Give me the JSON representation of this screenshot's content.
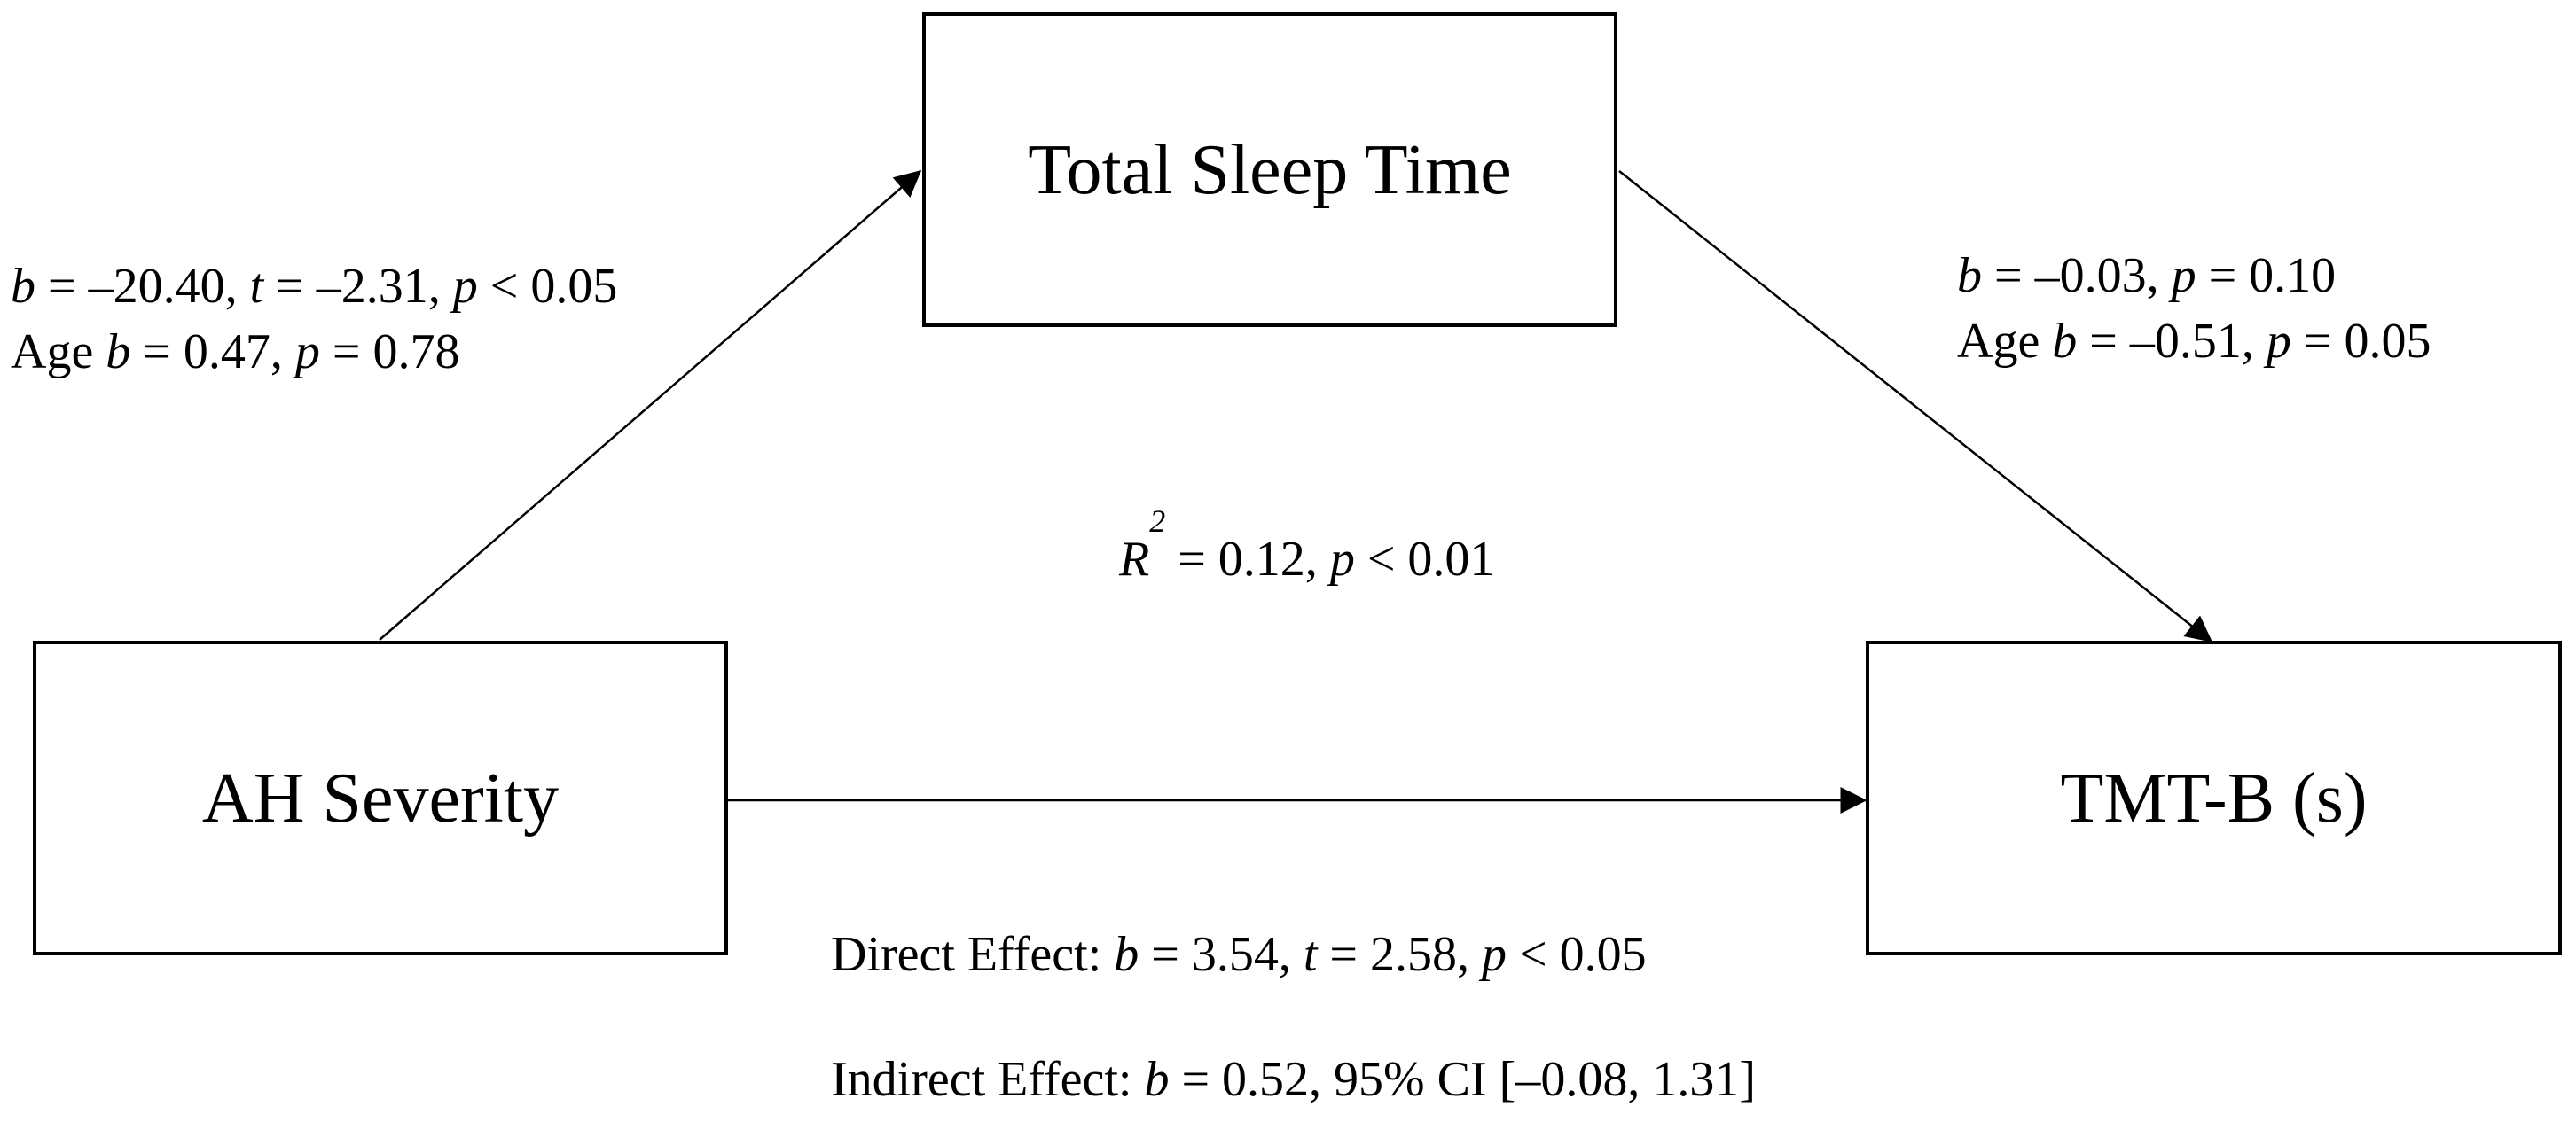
{
  "nodes": {
    "mediator": {
      "label": "Total Sleep Time"
    },
    "predictor": {
      "label": "AH Severity"
    },
    "outcome": {
      "label": "TMT-B (s)"
    }
  },
  "paths": {
    "a": {
      "b_sym": "b",
      "b_val": " = –20.40, ",
      "t_sym": "t",
      "t_val": " = –2.31, ",
      "p_sym": "p",
      "p_val": " < 0.05",
      "age_label": "Age ",
      "age_b_sym": "b",
      "age_b_val": " = 0.47, ",
      "age_p_sym": "p",
      "age_p_val": " = 0.78"
    },
    "b": {
      "b_sym": "b",
      "b_val": " = –0.03, ",
      "p_sym": "p",
      "p_val": " = 0.10",
      "age_label": "Age ",
      "age_b_sym": "b",
      "age_b_val": " = –0.51, ",
      "age_p_sym": "p",
      "age_p_val": " = 0.05"
    }
  },
  "model_fit": {
    "r_sym": "R",
    "r_sup": "2",
    "r_val": " = 0.12, ",
    "p_sym": "p",
    "p_val": " < 0.01"
  },
  "effects": {
    "direct": {
      "prefix": "Direct Effect: ",
      "b_sym": "b",
      "b_val": " = 3.54, ",
      "t_sym": "t",
      "t_val": " = 2.58, ",
      "p_sym": "p",
      "p_val": " < 0.05"
    },
    "indirect": {
      "prefix": "Indirect Effect: ",
      "b_sym": "b",
      "b_val": " = 0.52, 95% CI [–0.08, 1.31]"
    }
  }
}
